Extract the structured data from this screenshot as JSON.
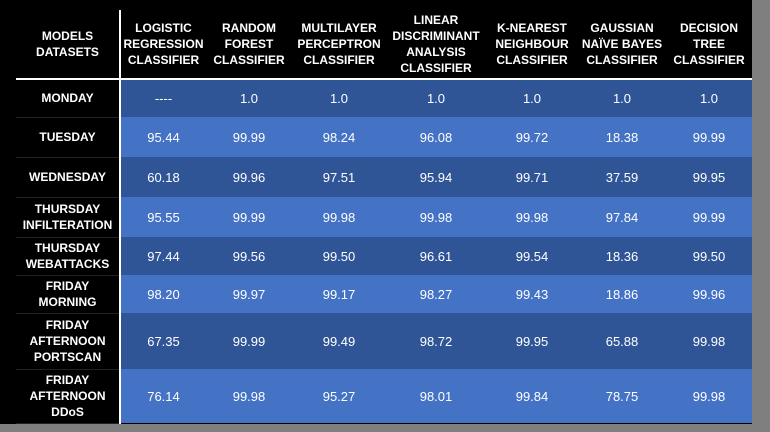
{
  "table": {
    "corner": [
      "MODELS",
      "DATASETS"
    ],
    "columns": [
      {
        "lines": [
          "LOGISTIC",
          "REGRESSION",
          "CLASSIFIER"
        ]
      },
      {
        "lines": [
          "RANDOM",
          "FOREST",
          "CLASSIFIER"
        ]
      },
      {
        "lines": [
          "MULTILAYER",
          "PERCEPTRON",
          "CLASSIFIER"
        ]
      },
      {
        "lines": [
          "LINEAR",
          "DISCRIMINANT",
          "ANALYSIS",
          "CLASSIFIER"
        ]
      },
      {
        "lines": [
          "K-NEAREST",
          "NEIGHBOUR",
          "CLASSIFIER"
        ]
      },
      {
        "lines": [
          "GAUSSIAN",
          "NAÏVE BAYES",
          "CLASSIFIER"
        ]
      },
      {
        "lines": [
          "DECISION",
          "TREE",
          "CLASSIFIER"
        ]
      }
    ],
    "rows": [
      {
        "label": [
          "MONDAY"
        ],
        "values": [
          "----",
          "1.0",
          "1.0",
          "1.0",
          "1.0",
          "1.0",
          "1.0"
        ]
      },
      {
        "label": [
          "TUESDAY"
        ],
        "values": [
          "95.44",
          "99.99",
          "98.24",
          "96.08",
          "99.72",
          "18.38",
          "99.99"
        ]
      },
      {
        "label": [
          "WEDNESDAY"
        ],
        "values": [
          "60.18",
          "99.96",
          "97.51",
          "95.94",
          "99.71",
          "37.59",
          "99.95"
        ]
      },
      {
        "label": [
          "THURSDAY",
          "INFILTERATION"
        ],
        "values": [
          "95.55",
          "99.99",
          "99.98",
          "99.98",
          "99.98",
          "97.84",
          "99.99"
        ]
      },
      {
        "label": [
          "THURSDAY",
          "WEBATTACKS"
        ],
        "values": [
          "97.44",
          "99.56",
          "99.50",
          "96.61",
          "99.54",
          "18.36",
          "99.50"
        ]
      },
      {
        "label": [
          "FRIDAY",
          "MORNING"
        ],
        "values": [
          "98.20",
          "99.97",
          "99.17",
          "98.27",
          "99.43",
          "18.86",
          "99.96"
        ]
      },
      {
        "label": [
          "FRIDAY",
          "AFTERNOON",
          "PORTSCAN"
        ],
        "values": [
          "67.35",
          "99.99",
          "99.49",
          "98.72",
          "99.95",
          "65.88",
          "99.98"
        ]
      },
      {
        "label": [
          "FRIDAY",
          "AFTERNOON",
          "DDoS"
        ],
        "values": [
          "76.14",
          "99.98",
          "95.27",
          "98.01",
          "99.84",
          "78.75",
          "99.98"
        ]
      }
    ]
  },
  "colors": {
    "header_bg": "#000000",
    "row_dark": "#2f5597",
    "row_light": "#4472c4",
    "text": "#ffffff",
    "frame": "#7f7f7f"
  }
}
